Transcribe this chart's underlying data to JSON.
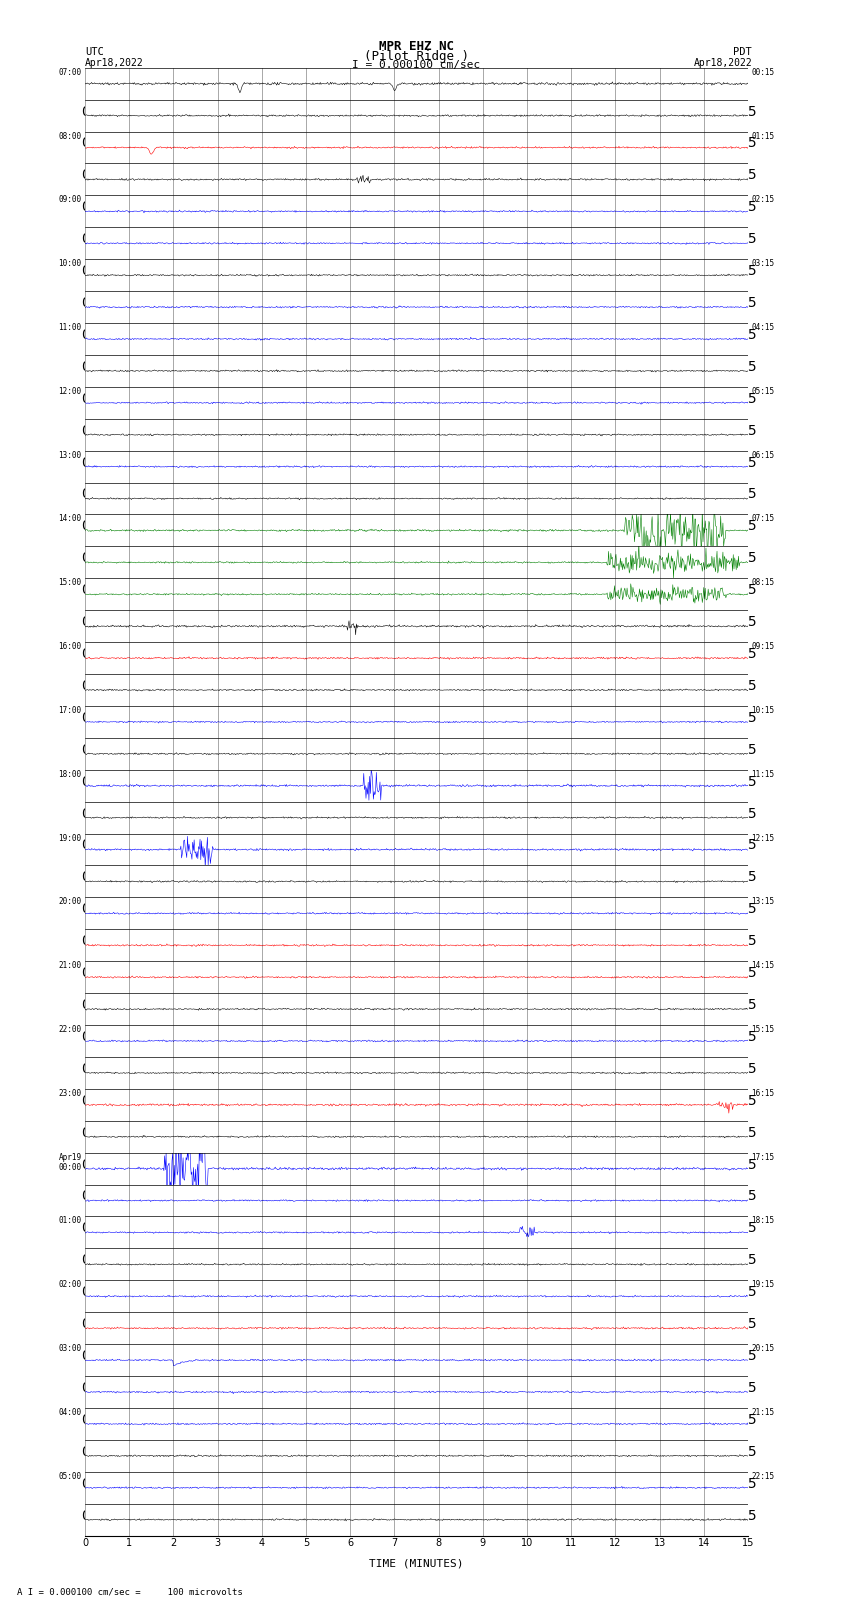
{
  "title_line1": "MPR EHZ NC",
  "title_line2": "(Pilot Ridge )",
  "title_line3": "I = 0.000100 cm/sec",
  "left_label": "UTC",
  "left_date": "Apr18,2022",
  "right_label": "PDT",
  "right_date": "Apr18,2022",
  "xlabel": "TIME (MINUTES)",
  "bottom_note": "A I = 0.000100 cm/sec =     100 microvolts",
  "n_rows": 46,
  "x_min": 0,
  "x_max": 15,
  "background_color": "#ffffff"
}
